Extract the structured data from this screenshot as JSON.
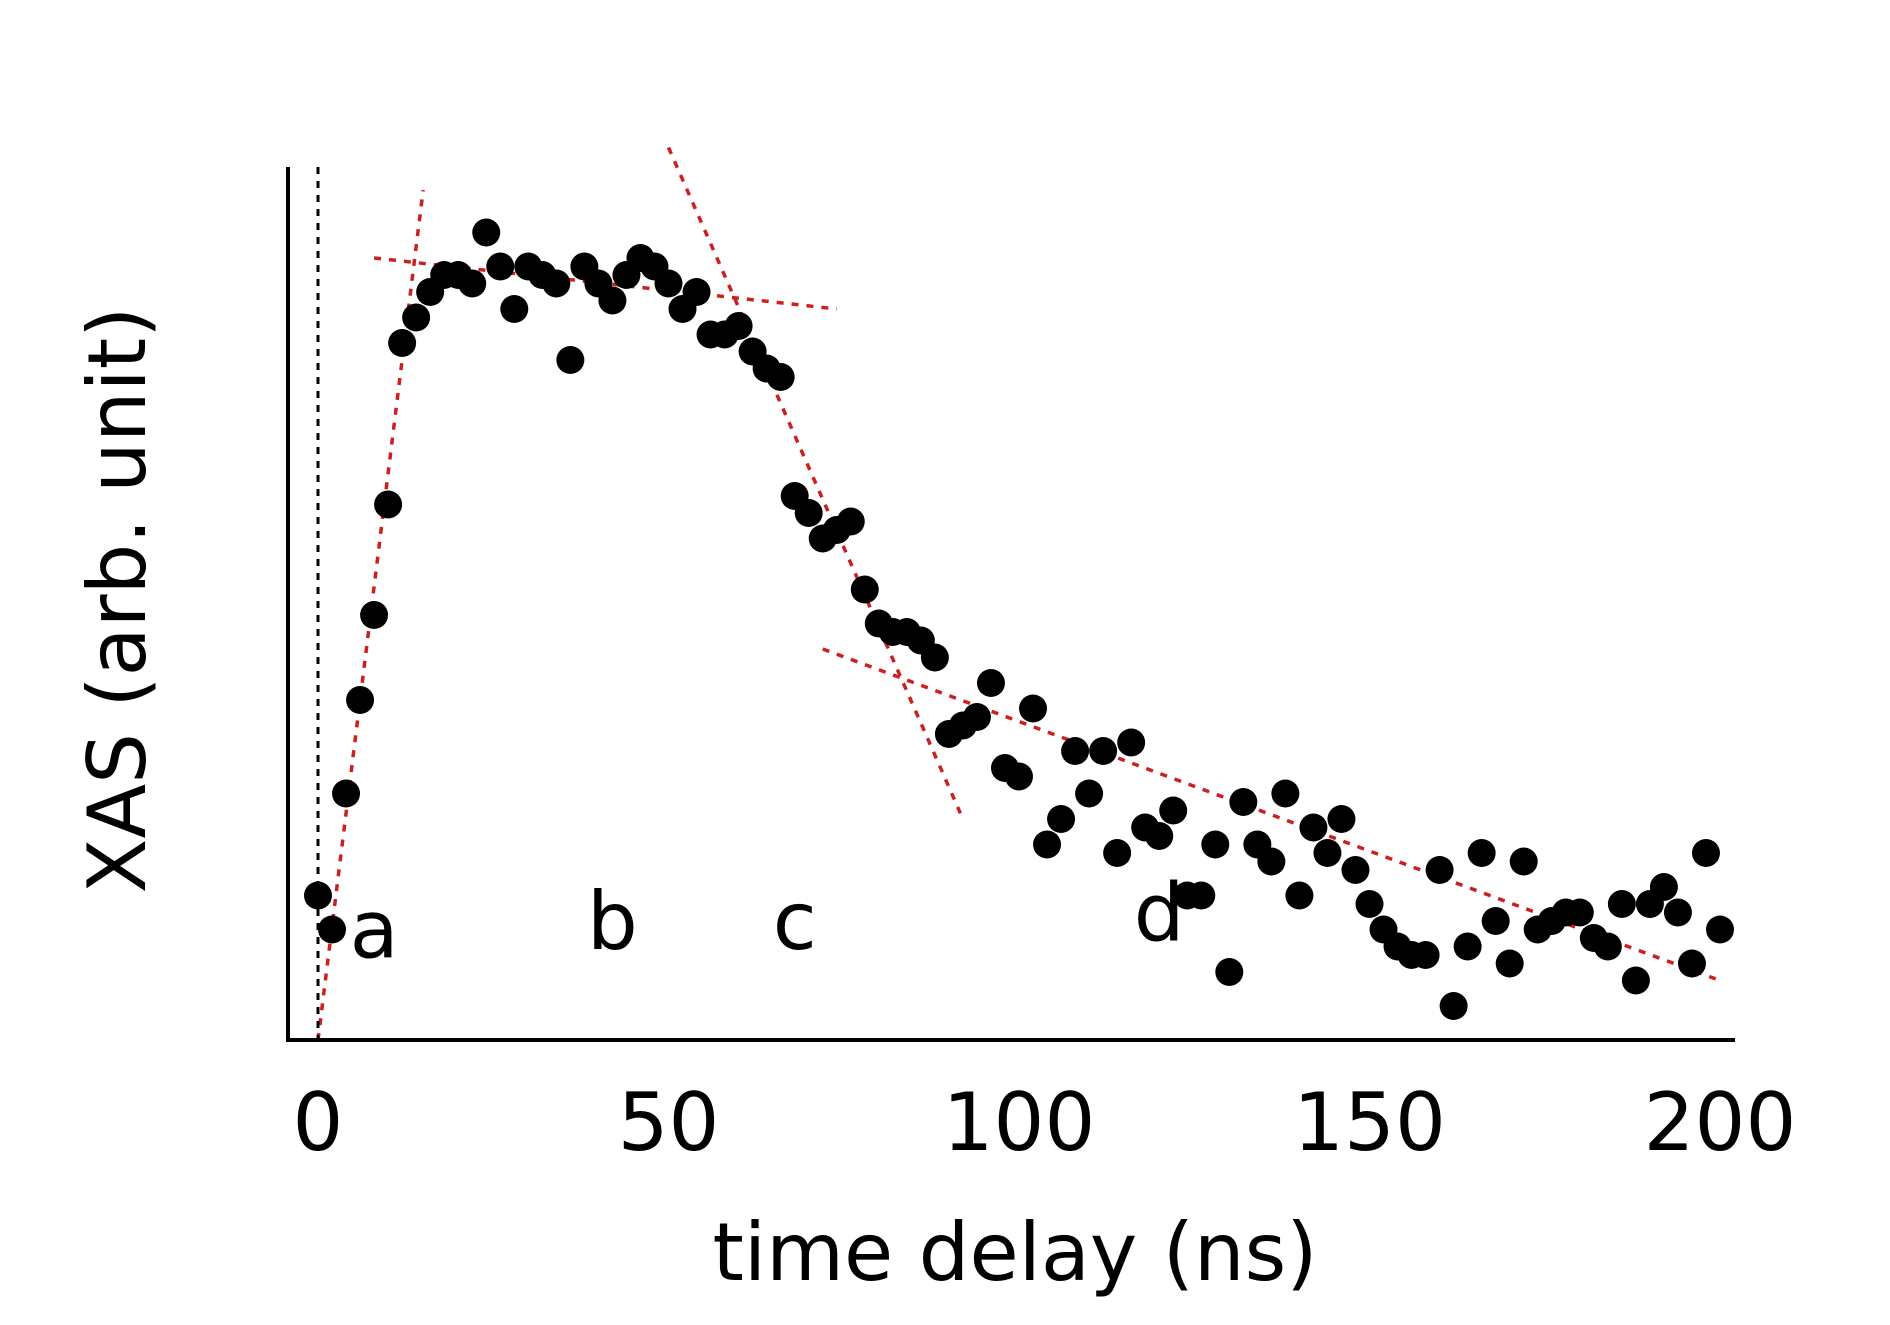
{
  "chart_data": {
    "type": "scatter",
    "title": "",
    "xlabel": "time delay (ns)",
    "ylabel": "XAS (arb. unit)",
    "xlim": [
      -2,
      200
    ],
    "ylim": [
      0,
      1
    ],
    "grid": false,
    "legend": "none",
    "xticks": [
      "0",
      "50",
      "100",
      "150",
      "200"
    ],
    "xtick_values": [
      0,
      50,
      100,
      150,
      200
    ],
    "colors": {
      "points": "#000000",
      "fit_lines": "#cc1f1f",
      "zero_line": "#000000"
    },
    "region_labels": [
      {
        "text": "a",
        "x": 8,
        "y": 0.13
      },
      {
        "text": "b",
        "x": 42,
        "y": 0.14
      },
      {
        "text": "c",
        "x": 68,
        "y": 0.14
      },
      {
        "text": "d",
        "x": 120,
        "y": 0.15
      }
    ],
    "zero_line_x": 0,
    "fit_lines": [
      {
        "segment": "a",
        "x": [
          0,
          15
        ],
        "y": [
          0.0,
          1.0
        ]
      },
      {
        "segment": "b",
        "x": [
          8,
          74
        ],
        "y": [
          0.92,
          0.86
        ]
      },
      {
        "segment": "c",
        "x": [
          50,
          92
        ],
        "y": [
          1.05,
          0.26
        ]
      },
      {
        "segment": "d",
        "x": [
          72,
          200
        ],
        "y": [
          0.46,
          0.07
        ]
      }
    ],
    "series": [
      {
        "x": [
          0,
          2,
          4,
          6,
          8,
          10,
          12,
          14,
          16,
          18,
          20,
          22,
          24,
          26,
          28,
          30,
          32,
          34,
          36,
          38,
          40,
          42,
          44,
          46,
          48,
          50,
          52,
          54,
          56,
          58,
          60,
          62,
          64,
          66,
          68,
          70,
          72,
          74,
          76,
          78,
          80,
          82,
          84,
          86,
          88,
          90,
          92,
          94,
          96,
          98,
          100,
          102,
          104,
          106,
          108,
          110,
          112,
          114,
          116,
          118,
          120,
          122,
          124,
          126,
          128,
          130,
          132,
          134,
          136,
          138,
          140,
          142,
          144,
          146,
          148,
          150,
          152,
          154,
          156,
          158,
          160,
          162,
          164,
          166,
          168,
          170,
          172,
          174,
          176,
          178,
          180,
          182,
          184,
          186,
          188,
          190,
          192,
          194,
          196,
          198,
          200
        ],
        "y": [
          0.17,
          0.13,
          0.29,
          0.4,
          0.5,
          0.63,
          0.82,
          0.85,
          0.88,
          0.9,
          0.9,
          0.89,
          0.95,
          0.91,
          0.86,
          0.91,
          0.9,
          0.89,
          0.8,
          0.91,
          0.89,
          0.87,
          0.9,
          0.92,
          0.91,
          0.89,
          0.86,
          0.88,
          0.83,
          0.83,
          0.84,
          0.81,
          0.79,
          0.78,
          0.64,
          0.62,
          0.59,
          0.6,
          0.61,
          0.53,
          0.49,
          0.48,
          0.48,
          0.47,
          0.45,
          0.36,
          0.37,
          0.38,
          0.42,
          0.32,
          0.31,
          0.39,
          0.23,
          0.26,
          0.34,
          0.29,
          0.34,
          0.22,
          0.35,
          0.25,
          0.24,
          0.27,
          0.17,
          0.17,
          0.23,
          0.08,
          0.28,
          0.23,
          0.21,
          0.29,
          0.17,
          0.25,
          0.22,
          0.26,
          0.2,
          0.16,
          0.13,
          0.11,
          0.1,
          0.1,
          0.2,
          0.04,
          0.11,
          0.22,
          0.14,
          0.09,
          0.21,
          0.13,
          0.14,
          0.15,
          0.15,
          0.12,
          0.11,
          0.16,
          0.07,
          0.16,
          0.18,
          0.15,
          0.09,
          0.22,
          0.13
        ]
      }
    ]
  }
}
